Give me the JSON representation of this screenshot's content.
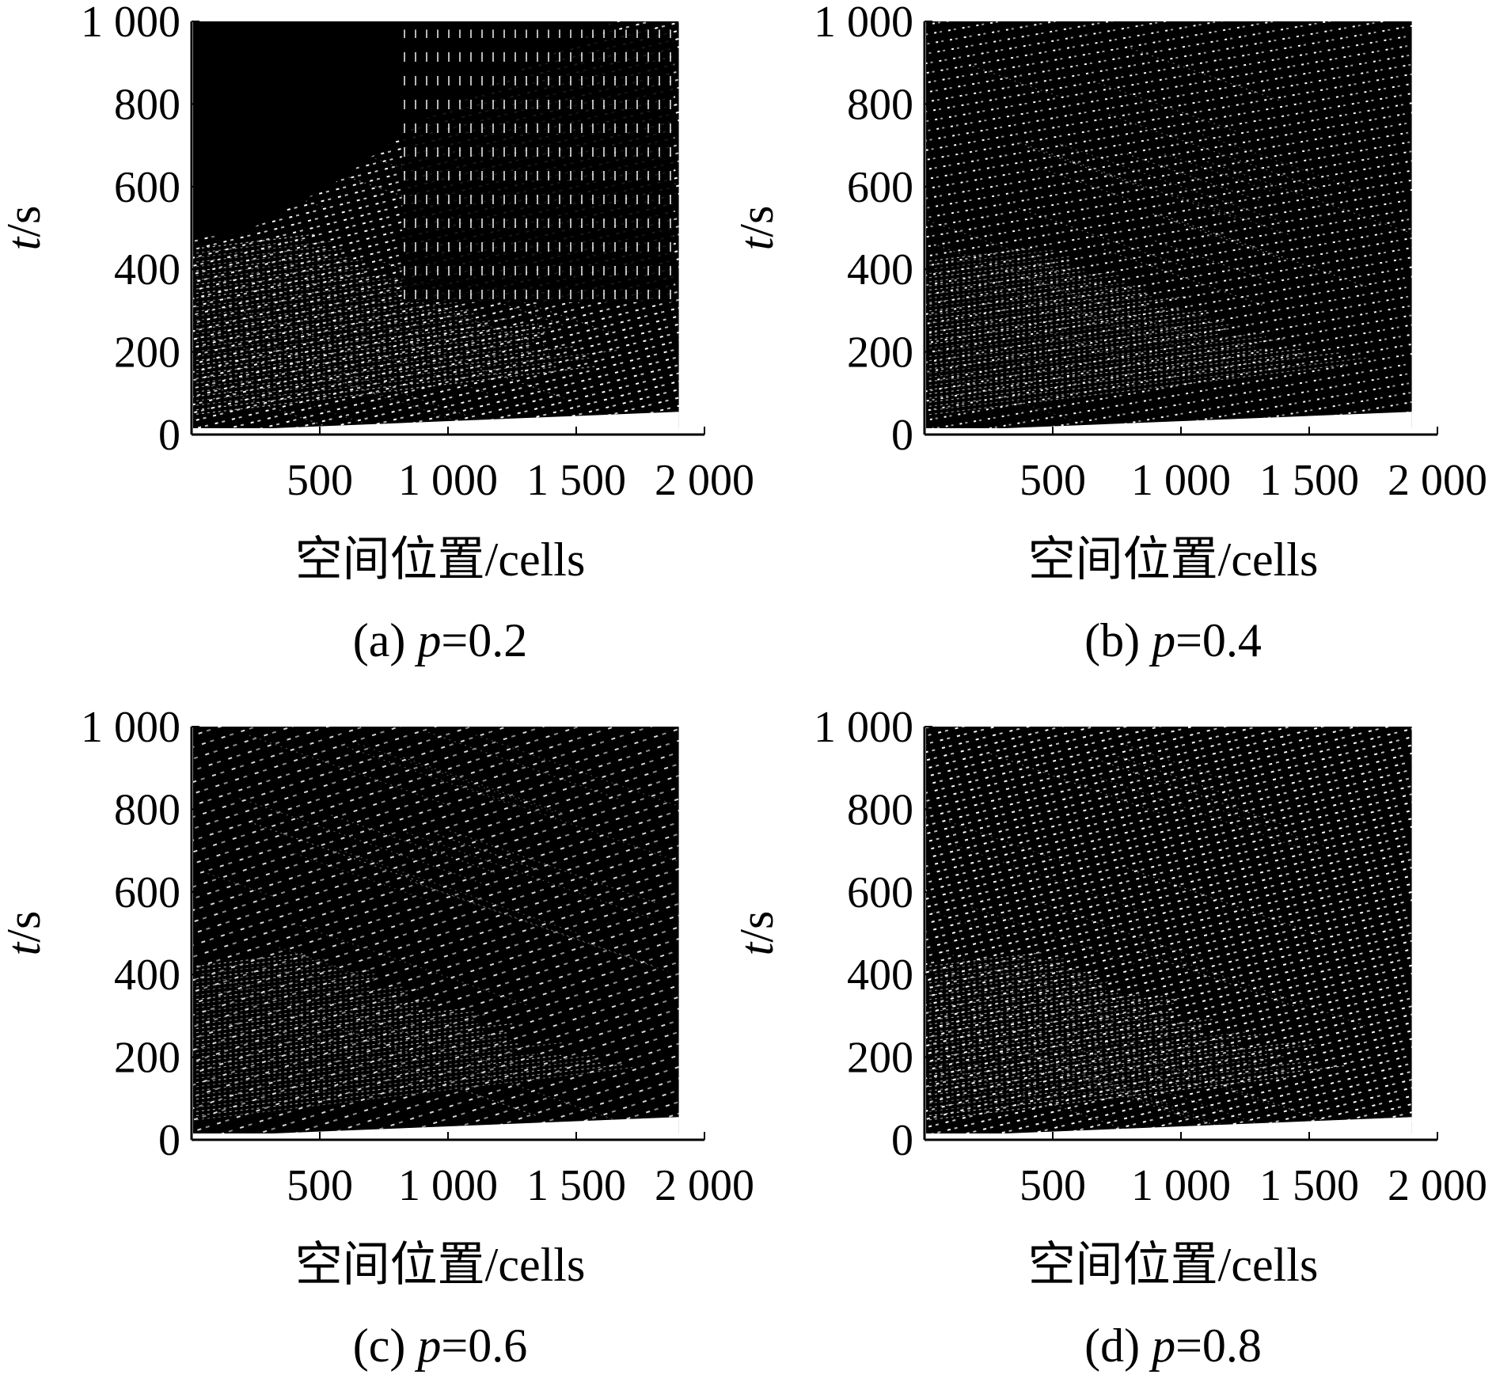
{
  "chart_data": [
    {
      "type": "heatmap",
      "panel": "a",
      "caption_prefix": "(a) ",
      "caption_var": "p",
      "caption_value": "=0.2",
      "p": 0.2,
      "xlabel": "空间位置/cells",
      "ylabel_var": "t",
      "ylabel_unit": "/s",
      "xlim": [
        0,
        2000
      ],
      "ylim": [
        0,
        1000
      ],
      "xticks": [
        500,
        1000,
        1500,
        2000
      ],
      "xtick_labels": [
        "500",
        "1 000",
        "1 500",
        "2 000"
      ],
      "yticks": [
        0,
        200,
        400,
        600,
        800,
        1000
      ],
      "ytick_labels": [
        "0",
        "200",
        "400",
        "600",
        "800",
        "1 000"
      ],
      "data_extent": {
        "x": [
          0,
          1900
        ],
        "y": [
          0,
          1000
        ]
      }
    },
    {
      "type": "heatmap",
      "panel": "b",
      "caption_prefix": "(b) ",
      "caption_var": "p",
      "caption_value": "=0.4",
      "p": 0.4,
      "xlabel": "空间位置/cells",
      "ylabel_var": "t",
      "ylabel_unit": "/s",
      "xlim": [
        0,
        2000
      ],
      "ylim": [
        0,
        1000
      ],
      "xticks": [
        500,
        1000,
        1500,
        2000
      ],
      "xtick_labels": [
        "500",
        "1 000",
        "1 500",
        "2 000"
      ],
      "yticks": [
        0,
        200,
        400,
        600,
        800,
        1000
      ],
      "ytick_labels": [
        "0",
        "200",
        "400",
        "600",
        "800",
        "1 000"
      ],
      "data_extent": {
        "x": [
          0,
          1900
        ],
        "y": [
          0,
          1000
        ]
      }
    },
    {
      "type": "heatmap",
      "panel": "c",
      "caption_prefix": "(c) ",
      "caption_var": "p",
      "caption_value": "=0.6",
      "p": 0.6,
      "xlabel": "空间位置/cells",
      "ylabel_var": "t",
      "ylabel_unit": "/s",
      "xlim": [
        0,
        2000
      ],
      "ylim": [
        0,
        1000
      ],
      "xticks": [
        500,
        1000,
        1500,
        2000
      ],
      "xtick_labels": [
        "500",
        "1 000",
        "1 500",
        "2 000"
      ],
      "yticks": [
        0,
        200,
        400,
        600,
        800,
        1000
      ],
      "ytick_labels": [
        "0",
        "200",
        "400",
        "600",
        "800",
        "1 000"
      ],
      "data_extent": {
        "x": [
          0,
          1900
        ],
        "y": [
          0,
          1000
        ]
      }
    },
    {
      "type": "heatmap",
      "panel": "d",
      "caption_prefix": "(d) ",
      "caption_var": "p",
      "caption_value": "=0.8",
      "p": 0.8,
      "xlabel": "空间位置/cells",
      "ylabel_var": "t",
      "ylabel_unit": "/s",
      "xlim": [
        0,
        2000
      ],
      "ylim": [
        0,
        1000
      ],
      "xticks": [
        500,
        1000,
        1500,
        2000
      ],
      "xtick_labels": [
        "500",
        "1 000",
        "1 500",
        "2 000"
      ],
      "yticks": [
        0,
        200,
        400,
        600,
        800,
        1000
      ],
      "ytick_labels": [
        "0",
        "200",
        "400",
        "600",
        "800",
        "1 000"
      ],
      "data_extent": {
        "x": [
          0,
          1900
        ],
        "y": [
          0,
          1000
        ]
      }
    }
  ],
  "colors": {
    "occupied": "#000000",
    "empty": "#ffffff",
    "axis": "#000000"
  }
}
